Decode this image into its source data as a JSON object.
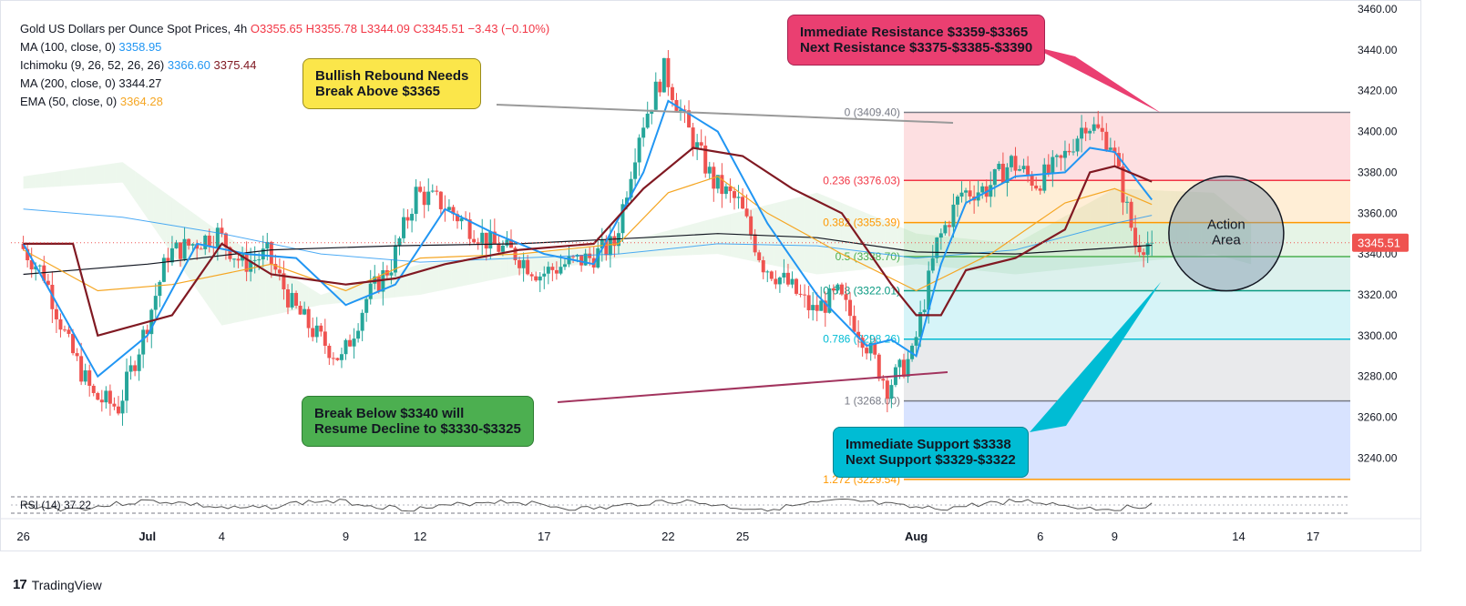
{
  "legend": {
    "title": "Gold US Dollars per Ounce Spot Prices, 4h",
    "ohlc": {
      "o": "O3355.65",
      "h": "H3355.78",
      "l": "L3344.09",
      "c": "C3345.51",
      "chg": "−3.43 (−0.10%)"
    },
    "ma100": {
      "label": "MA (100, close, 0)",
      "value": "3358.95"
    },
    "ichimoku": {
      "label": "Ichimoku (9, 26, 52, 26, 26)",
      "v1": "3366.60",
      "v2": "3375.44"
    },
    "ma200": {
      "label": "MA (200, close, 0)",
      "value": "3344.27"
    },
    "ema50": {
      "label": "EMA (50, close, 0)",
      "value": "3364.28"
    }
  },
  "callouts": {
    "bullish": {
      "line1": "Bullish Rebound Needs",
      "line2": "Break Above $3365"
    },
    "resistance": {
      "line1": "Immediate Resistance $3359-$3365",
      "line2": "Next Resistance $3375-$3385-$3390"
    },
    "bearish": {
      "line1": "Break Below $3340 will",
      "line2": "Resume Decline to $3330-$3325"
    },
    "support": {
      "line1": "Immediate Support $3338",
      "line2": "Next Support $3329-$3322"
    },
    "action": {
      "line1": "Action",
      "line2": "Area"
    }
  },
  "rsi_label": "RSI (14)",
  "rsi_value": "37.22",
  "last_price": "3345.51",
  "branding": "TradingView",
  "colors": {
    "up": "#26a69a",
    "down": "#ef5350",
    "ma100": "#2196f3",
    "ma200": "#131722",
    "ema50": "#f5a623",
    "tenkan": "#2196f3",
    "kijun": "#801922",
    "callout_yellow": "#fbe64a",
    "callout_red": "#ea3f71",
    "callout_green": "#4caf50",
    "callout_cyan": "#00bcd4"
  },
  "chart_data": {
    "type": "candlestick",
    "title": "Gold US Dollars per Ounce Spot Prices, 4h",
    "ylim": [
      3225,
      3460
    ],
    "y_ticks": [
      3240,
      3260,
      3280,
      3300,
      3320,
      3340,
      3360,
      3380,
      3400,
      3420,
      3440,
      3460
    ],
    "y_tick_labels": [
      "3240.00",
      "3260.00",
      "3280.00",
      "3300.00",
      "3320.00",
      "3340.00",
      "3360.00",
      "3380.00",
      "3400.00",
      "3420.00",
      "3440.00",
      "3460.00"
    ],
    "x_ticks": [
      {
        "day": 0,
        "label": "26"
      },
      {
        "day": 5,
        "label": "Jul"
      },
      {
        "day": 8,
        "label": "4"
      },
      {
        "day": 13,
        "label": "9"
      },
      {
        "day": 16,
        "label": "12"
      },
      {
        "day": 21,
        "label": "17"
      },
      {
        "day": 26,
        "label": "22"
      },
      {
        "day": 29,
        "label": "25"
      },
      {
        "day": 36,
        "label": "Aug"
      },
      {
        "day": 41,
        "label": "6"
      },
      {
        "day": 44,
        "label": "9"
      },
      {
        "day": 49,
        "label": "14"
      },
      {
        "day": 52,
        "label": "17"
      }
    ],
    "x_range_days": [
      -0.5,
      53.5
    ],
    "candle_path": [
      [
        0,
        3345
      ],
      [
        1,
        3330
      ],
      [
        2,
        3295
      ],
      [
        3,
        3270
      ],
      [
        4,
        3265
      ],
      [
        5,
        3300
      ],
      [
        6,
        3340
      ],
      [
        7,
        3345
      ],
      [
        8,
        3350
      ],
      [
        9,
        3335
      ],
      [
        10,
        3340
      ],
      [
        11,
        3315
      ],
      [
        12,
        3300
      ],
      [
        13,
        3288
      ],
      [
        14,
        3318
      ],
      [
        15,
        3335
      ],
      [
        16,
        3370
      ],
      [
        17,
        3365
      ],
      [
        18,
        3355
      ],
      [
        19,
        3345
      ],
      [
        20,
        3340
      ],
      [
        21,
        3330
      ],
      [
        22,
        3335
      ],
      [
        23,
        3338
      ],
      [
        24,
        3345
      ],
      [
        25,
        3400
      ],
      [
        26,
        3430
      ],
      [
        27,
        3400
      ],
      [
        28,
        3375
      ],
      [
        29,
        3365
      ],
      [
        30,
        3335
      ],
      [
        31,
        3325
      ],
      [
        32,
        3312
      ],
      [
        33,
        3320
      ],
      [
        34,
        3300
      ],
      [
        35,
        3275
      ],
      [
        36,
        3290
      ],
      [
        37,
        3345
      ],
      [
        38,
        3370
      ],
      [
        39,
        3372
      ],
      [
        40,
        3385
      ],
      [
        41,
        3375
      ],
      [
        42,
        3385
      ],
      [
        43,
        3405
      ],
      [
        44,
        3395
      ],
      [
        45,
        3345
      ],
      [
        45.5,
        3345.51
      ]
    ],
    "ma100": [
      [
        0,
        3362
      ],
      [
        4,
        3358
      ],
      [
        8,
        3350
      ],
      [
        12,
        3340
      ],
      [
        16,
        3336
      ],
      [
        20,
        3338
      ],
      [
        24,
        3340
      ],
      [
        28,
        3345
      ],
      [
        32,
        3344
      ],
      [
        36,
        3338
      ],
      [
        40,
        3342
      ],
      [
        44,
        3355
      ],
      [
        45.5,
        3358.95
      ]
    ],
    "ma200": [
      [
        0,
        3330
      ],
      [
        5,
        3335
      ],
      [
        10,
        3342
      ],
      [
        15,
        3344
      ],
      [
        20,
        3345
      ],
      [
        25,
        3348
      ],
      [
        28,
        3350
      ],
      [
        32,
        3348
      ],
      [
        36,
        3341
      ],
      [
        40,
        3340
      ],
      [
        44,
        3343
      ],
      [
        45.5,
        3344.27
      ]
    ],
    "ema50": [
      [
        0,
        3342
      ],
      [
        3,
        3322
      ],
      [
        6,
        3325
      ],
      [
        10,
        3335
      ],
      [
        13,
        3322
      ],
      [
        16,
        3338
      ],
      [
        20,
        3340
      ],
      [
        24,
        3345
      ],
      [
        26,
        3370
      ],
      [
        28,
        3378
      ],
      [
        30,
        3360
      ],
      [
        33,
        3340
      ],
      [
        36,
        3322
      ],
      [
        39,
        3340
      ],
      [
        42,
        3365
      ],
      [
        44,
        3372
      ],
      [
        45.5,
        3364.28
      ]
    ],
    "tenkan": [
      [
        0,
        3345
      ],
      [
        3,
        3280
      ],
      [
        5,
        3300
      ],
      [
        7,
        3345
      ],
      [
        9,
        3340
      ],
      [
        11,
        3338
      ],
      [
        13,
        3315
      ],
      [
        15,
        3325
      ],
      [
        17,
        3362
      ],
      [
        19,
        3350
      ],
      [
        21,
        3340
      ],
      [
        23,
        3335
      ],
      [
        25,
        3380
      ],
      [
        26,
        3415
      ],
      [
        28,
        3400
      ],
      [
        30,
        3355
      ],
      [
        32,
        3320
      ],
      [
        34,
        3295
      ],
      [
        35,
        3298
      ],
      [
        36,
        3290
      ],
      [
        37,
        3335
      ],
      [
        38,
        3365
      ],
      [
        40,
        3378
      ],
      [
        42,
        3380
      ],
      [
        43,
        3392
      ],
      [
        44,
        3390
      ],
      [
        45.5,
        3366.6
      ]
    ],
    "kijun": [
      [
        0,
        3345
      ],
      [
        2,
        3345
      ],
      [
        3,
        3300
      ],
      [
        6,
        3310
      ],
      [
        8,
        3345
      ],
      [
        10,
        3330
      ],
      [
        13,
        3325
      ],
      [
        15,
        3328
      ],
      [
        17,
        3335
      ],
      [
        20,
        3342
      ],
      [
        23,
        3345
      ],
      [
        25,
        3372
      ],
      [
        27,
        3392
      ],
      [
        29,
        3388
      ],
      [
        31,
        3372
      ],
      [
        33,
        3360
      ],
      [
        35,
        3325
      ],
      [
        36,
        3310
      ],
      [
        37,
        3310
      ],
      [
        38,
        3332
      ],
      [
        40,
        3338
      ],
      [
        42,
        3352
      ],
      [
        43,
        3380
      ],
      [
        44,
        3383
      ],
      [
        45.5,
        3375.44
      ]
    ],
    "cloud": {
      "a": [
        [
          0,
          3378
        ],
        [
          4,
          3385
        ],
        [
          8,
          3350
        ],
        [
          12,
          3320
        ],
        [
          16,
          3335
        ],
        [
          20,
          3340
        ],
        [
          24,
          3345
        ],
        [
          28,
          3358
        ],
        [
          32,
          3370
        ],
        [
          36,
          3350
        ],
        [
          40,
          3345
        ],
        [
          44,
          3372
        ],
        [
          48,
          3370
        ],
        [
          49.5,
          3355
        ]
      ],
      "b": [
        [
          0,
          3372
        ],
        [
          4,
          3375
        ],
        [
          8,
          3305
        ],
        [
          12,
          3315
        ],
        [
          16,
          3320
        ],
        [
          20,
          3330
        ],
        [
          24,
          3338
        ],
        [
          28,
          3340
        ],
        [
          32,
          3330
        ],
        [
          36,
          3335
        ],
        [
          40,
          3330
        ],
        [
          44,
          3335
        ],
        [
          48,
          3340
        ],
        [
          49.5,
          3335
        ]
      ]
    },
    "fib": [
      {
        "ratio": "0",
        "price": 3409.4,
        "label": "0 (3409.40)",
        "color": "#787b86"
      },
      {
        "ratio": "0.236",
        "price": 3376.03,
        "label": "0.236 (3376.03)",
        "color": "#f23645"
      },
      {
        "ratio": "0.382",
        "price": 3355.39,
        "label": "0.382 (3355.39)",
        "color": "#ff9800"
      },
      {
        "ratio": "0.5",
        "price": 3338.7,
        "label": "0.5 (3338.70)",
        "color": "#4caf50"
      },
      {
        "ratio": "0.618",
        "price": 3322.01,
        "label": "0.618 (3322.01)",
        "color": "#089981"
      },
      {
        "ratio": "0.786",
        "price": 3298.26,
        "label": "0.786 (3298.26)",
        "color": "#00bcd4"
      },
      {
        "ratio": "1",
        "price": 3268.0,
        "label": "1 (3268.00)",
        "color": "#787b86"
      },
      {
        "ratio": "1.272",
        "price": 3229.54,
        "label": "1.272 (3229.54)",
        "color": "#ff9800"
      }
    ],
    "fib_start_day": 35.5,
    "action_area": {
      "center_day": 48.5,
      "center_price": 3350,
      "label": "Action Area"
    },
    "rsi": {
      "label": "RSI (14)",
      "value": 37.22
    }
  }
}
